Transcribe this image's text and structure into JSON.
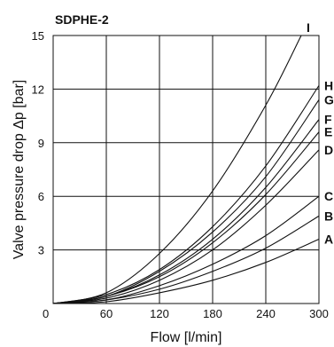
{
  "chart_data": {
    "type": "line",
    "title": "SDPHE-2",
    "xlabel": "Flow [l/min]",
    "ylabel": "Valve pressure drop  Δp [bar]",
    "xlim": [
      0,
      300
    ],
    "ylim": [
      0,
      15
    ],
    "xticks": [
      0,
      60,
      120,
      180,
      240,
      300
    ],
    "yticks": [
      3,
      6,
      9,
      12,
      15
    ],
    "grid": true,
    "series": [
      {
        "name": "A",
        "x": [
          0,
          60,
          120,
          180,
          240,
          300
        ],
        "y": [
          0,
          0.1,
          0.6,
          1.3,
          2.3,
          3.6
        ]
      },
      {
        "name": "B",
        "x": [
          0,
          60,
          120,
          180,
          240,
          300
        ],
        "y": [
          0,
          0.2,
          0.8,
          1.8,
          3.1,
          4.9
        ]
      },
      {
        "name": "C",
        "x": [
          0,
          60,
          120,
          180,
          240,
          300
        ],
        "y": [
          0,
          0.2,
          1.0,
          2.2,
          3.8,
          6.0
        ]
      },
      {
        "name": "D",
        "x": [
          0,
          60,
          120,
          180,
          240,
          300
        ],
        "y": [
          0,
          0.3,
          1.3,
          3.0,
          5.5,
          8.6
        ]
      },
      {
        "name": "E",
        "x": [
          0,
          60,
          120,
          180,
          240,
          300
        ],
        "y": [
          0,
          0.4,
          1.5,
          3.4,
          6.1,
          9.6
        ]
      },
      {
        "name": "F",
        "x": [
          0,
          60,
          120,
          180,
          240,
          300
        ],
        "y": [
          0,
          0.4,
          1.6,
          3.6,
          6.5,
          10.3
        ]
      },
      {
        "name": "G",
        "x": [
          0,
          60,
          120,
          180,
          240,
          300
        ],
        "y": [
          0,
          0.4,
          1.8,
          4.0,
          7.1,
          11.4
        ]
      },
      {
        "name": "H",
        "x": [
          0,
          60,
          120,
          180,
          240,
          300
        ],
        "y": [
          0,
          0.5,
          1.9,
          4.3,
          7.7,
          12.2
        ]
      },
      {
        "name": "I",
        "x": [
          0,
          60,
          120,
          180,
          240,
          280
        ],
        "y": [
          0,
          0.6,
          2.8,
          6.3,
          11.1,
          15.0
        ]
      }
    ]
  }
}
